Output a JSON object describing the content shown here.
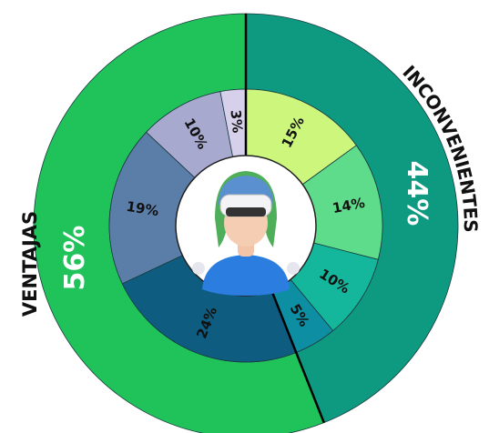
{
  "chart_data": {
    "type": "nested-donut",
    "outer": {
      "categories": [
        "INCONVENIENTES",
        "VENTAJAS"
      ],
      "values": [
        44,
        56
      ],
      "value_labels": [
        "44%",
        "56%"
      ],
      "colors": [
        "#0e9a80",
        "#1fc35a"
      ]
    },
    "inner": {
      "values": [
        15,
        14,
        10,
        5,
        24,
        19,
        10,
        3
      ],
      "value_labels": [
        "15%",
        "14%",
        "10%",
        "5%",
        "24%",
        "19%",
        "10%",
        "3%"
      ],
      "colors": [
        "#cdf77c",
        "#5fdc8b",
        "#14b79b",
        "#0e8ea3",
        "#0e5c80",
        "#5b7ea8",
        "#a8a9cf",
        "#d6d0ea"
      ]
    }
  }
}
